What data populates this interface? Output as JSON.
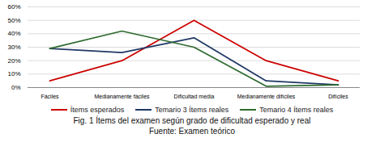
{
  "chart_data": {
    "type": "line",
    "title": "Fig. 1 Ítems del examen según grado de dificultad esperado y real",
    "subtitle": "Fuente: Examen teórico",
    "categories": [
      "Fáciles",
      "Medianamente fáciles",
      "Dificultad media",
      "Medianamente difíciles",
      "Difíciles"
    ],
    "series": [
      {
        "name": "Ítems esperados",
        "color": "#cc0000",
        "values": [
          0.05,
          0.2,
          0.5,
          0.2,
          0.05
        ]
      },
      {
        "name": "Temario 3 Ítems reales",
        "color": "#1f3864",
        "values": [
          0.29,
          0.26,
          0.37,
          0.05,
          0.02
        ]
      },
      {
        "name": "Temario 4 Ítems reales",
        "color": "#2e6b30",
        "values": [
          0.29,
          0.42,
          0.3,
          0.01,
          0.02
        ]
      }
    ],
    "ylim": [
      0,
      0.6
    ],
    "yticks": [
      {
        "value": 0,
        "label": "0%"
      },
      {
        "value": 0.1,
        "label": "10%"
      },
      {
        "value": 0.2,
        "label": "20%"
      },
      {
        "value": 0.3,
        "label": "30%"
      },
      {
        "value": 0.4,
        "label": "40%"
      },
      {
        "value": 0.5,
        "label": "50%"
      },
      {
        "value": 0.6,
        "label": "60%"
      }
    ],
    "grid": true,
    "legend": "bottom"
  }
}
